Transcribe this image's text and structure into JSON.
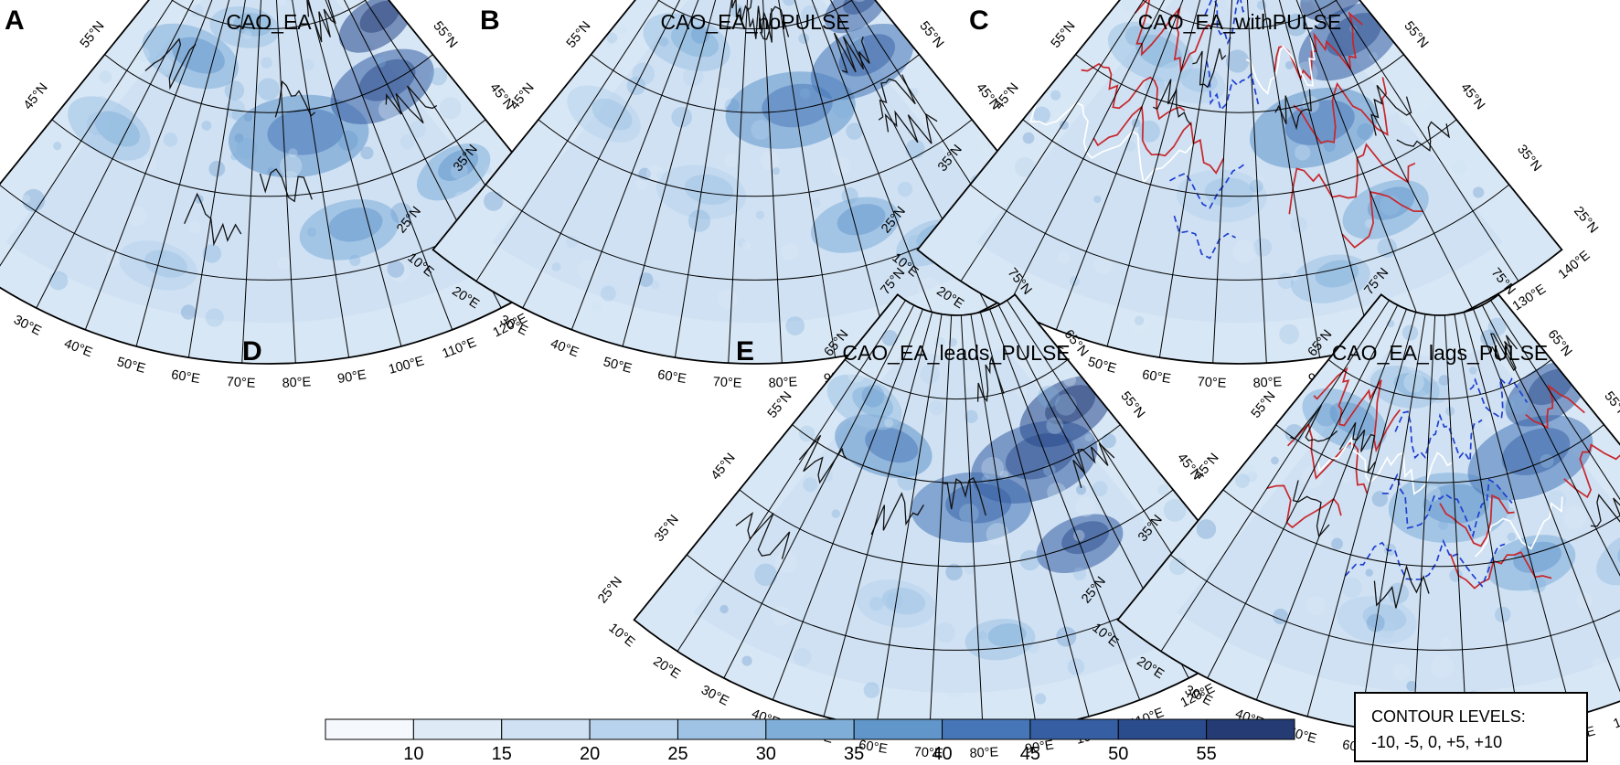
{
  "panels": [
    {
      "label": "A",
      "title": "CAO_EA",
      "anomaly_contours": false
    },
    {
      "label": "B",
      "title": "CAO_EA_noPULSE",
      "anomaly_contours": false
    },
    {
      "label": "C",
      "title": "CAO_EA_withPULSE",
      "anomaly_contours": true
    },
    {
      "label": "D",
      "title": "CAO_EA_leads_PULSE",
      "anomaly_contours": false
    },
    {
      "label": "E",
      "title": "CAO_EA_lags_PULSE",
      "anomaly_contours": true
    }
  ],
  "axes": {
    "lat_labels_left": [
      "25°N",
      "35°N",
      "45°N",
      "55°N",
      "65°N",
      "75°N"
    ],
    "lat_labels_right": [
      "75°N",
      "65°N",
      "55°N",
      "45°N",
      "35°N",
      "25°N"
    ],
    "lon_labels": [
      "10°E",
      "20°E",
      "30°E",
      "40°E",
      "50°E",
      "60°E",
      "70°E",
      "80°E",
      "90°E",
      "100°E",
      "110°E",
      "120°E",
      "130°E",
      "140°E"
    ]
  },
  "colorbar": {
    "ticks": [
      "10",
      "15",
      "20",
      "25",
      "30",
      "35",
      "40",
      "45",
      "50",
      "55"
    ],
    "colors": [
      "#f5f9fe",
      "#deebf7",
      "#cfe1f3",
      "#b8d3ed",
      "#9ec3e4",
      "#7fafd9",
      "#6196cb",
      "#4676b7",
      "#365fa3",
      "#2a4b8c",
      "#243b73"
    ]
  },
  "contour_box": {
    "title": "CONTOUR LEVELS:",
    "levels": "-10, -5, 0, +5, +10"
  },
  "contour_colors": {
    "positive": "#c8262a",
    "negative": "#1f3fd0",
    "zero": "#ffffff"
  }
}
